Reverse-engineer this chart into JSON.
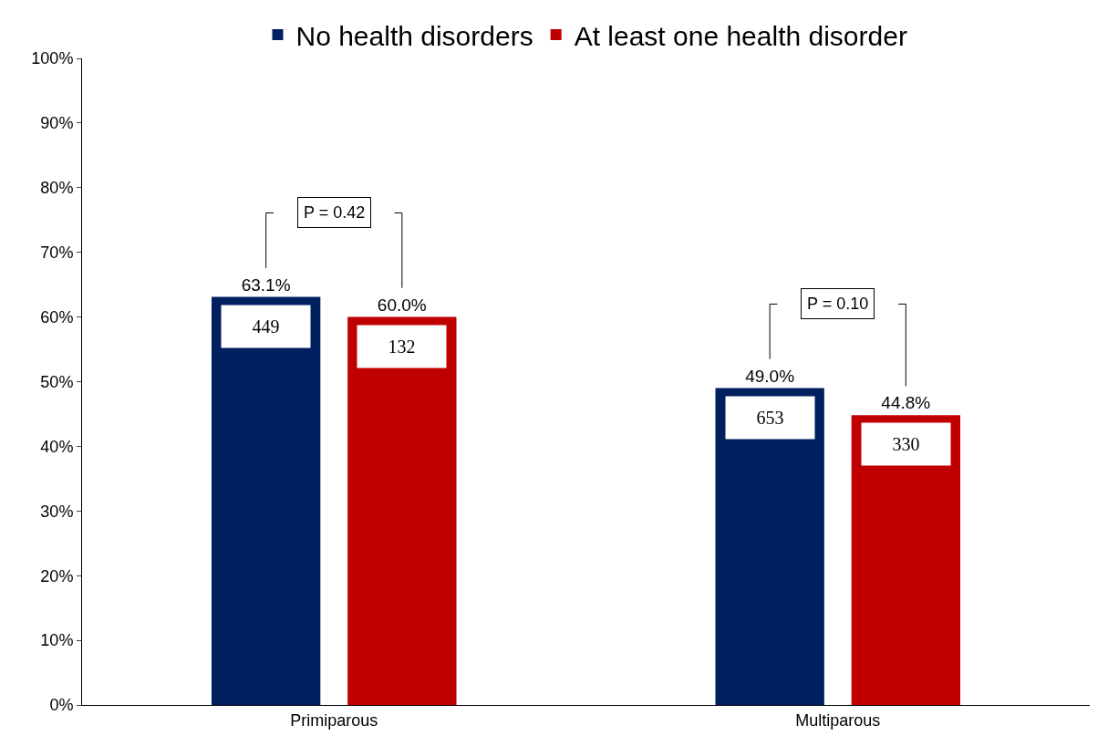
{
  "chart_data": {
    "type": "bar",
    "categories": [
      "Primiparous",
      "Multiparous"
    ],
    "series": [
      {
        "name": "No health disorders",
        "color": "#002060",
        "values": [
          63.1,
          49.0
        ],
        "value_labels": [
          "63.1%",
          "49.0%"
        ]
      },
      {
        "name": "At least one health disorder",
        "color": "#c00000",
        "values": [
          60.0,
          44.8
        ],
        "value_labels": [
          "60.0%",
          "44.8%"
        ]
      }
    ],
    "ylim": [
      0,
      100
    ],
    "yticks": [
      {
        "value": 0,
        "label": "0%"
      },
      {
        "value": 10,
        "label": "10%"
      },
      {
        "value": 20,
        "label": "20%"
      },
      {
        "value": 30,
        "label": "30%"
      },
      {
        "value": 40,
        "label": "40%"
      },
      {
        "value": 50,
        "label": "50%"
      },
      {
        "value": 60,
        "label": "60%"
      },
      {
        "value": 70,
        "label": "70%"
      },
      {
        "value": 80,
        "label": "80%"
      },
      {
        "value": 90,
        "label": "90%"
      },
      {
        "value": 100,
        "label": "100%"
      }
    ],
    "annotations": [
      "P = 0.42",
      "P = 0.10",
      "449",
      "132",
      "653",
      "330"
    ],
    "grid": false,
    "legend": "top"
  }
}
